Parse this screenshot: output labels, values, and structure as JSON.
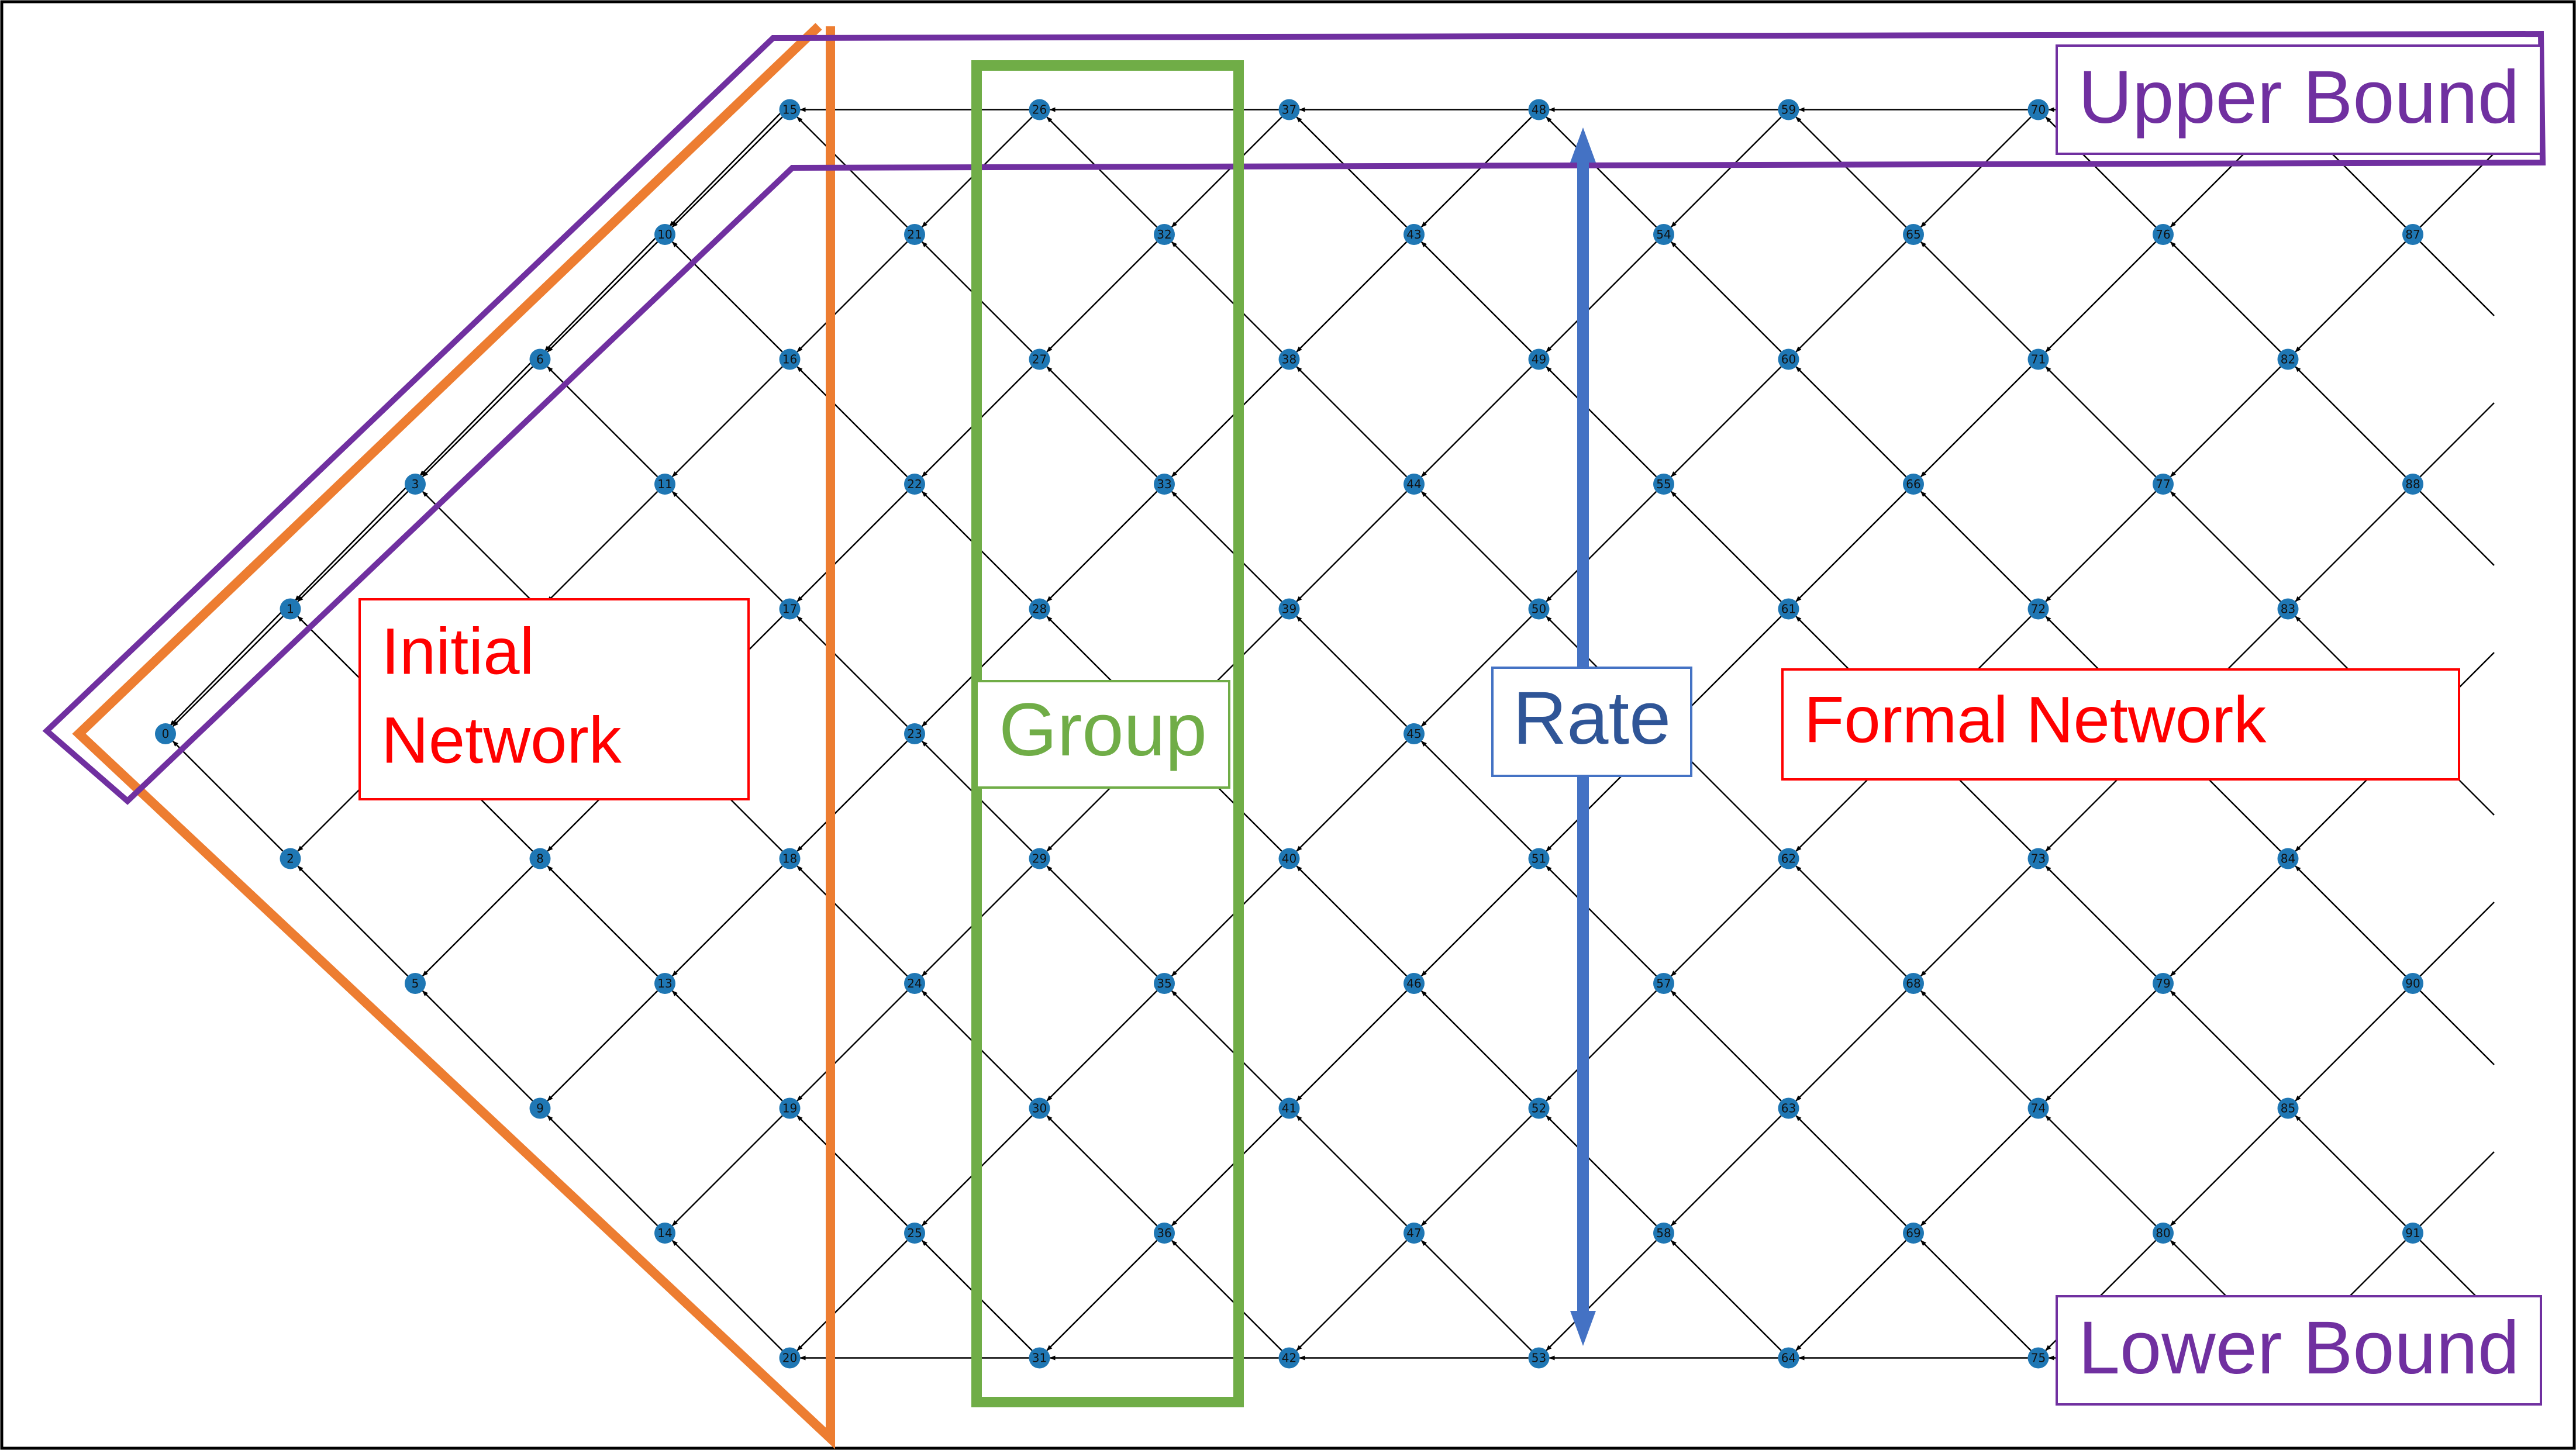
{
  "colors": {
    "node": "#1f77b4",
    "edge": "#000000",
    "initial": "#ed7d31",
    "bound": "#7030a0",
    "group": "#70ad47",
    "rate": "#4472c4",
    "network_label": "#ff0000"
  },
  "callouts": {
    "upper_bound": "Upper Bound",
    "lower_bound": "Lower Bound",
    "initial_network_line1": "Initial",
    "initial_network_line2": "Network",
    "group": "Group",
    "rate": "Rate",
    "formal_network": "Formal Network"
  },
  "network": {
    "columns": [
      {
        "index": 0,
        "nodes": [
          0
        ]
      },
      {
        "index": 1,
        "nodes": [
          1,
          2
        ]
      },
      {
        "index": 2,
        "nodes": [
          3,
          4,
          5
        ]
      },
      {
        "index": 3,
        "nodes": [
          6,
          7,
          8,
          9
        ]
      },
      {
        "index": 4,
        "nodes": [
          10,
          11,
          12,
          13,
          14
        ]
      },
      {
        "index": 5,
        "nodes": [
          15,
          16,
          17,
          18,
          19,
          20
        ]
      },
      {
        "index": 6,
        "nodes": [
          21,
          22,
          23,
          24,
          25
        ]
      },
      {
        "index": 7,
        "nodes": [
          26,
          27,
          28,
          29,
          30,
          31
        ]
      },
      {
        "index": 8,
        "nodes": [
          32,
          33,
          34,
          35,
          36
        ]
      },
      {
        "index": 9,
        "nodes": [
          37,
          38,
          39,
          40,
          41,
          42
        ]
      },
      {
        "index": 10,
        "nodes": [
          43,
          44,
          45,
          46,
          47
        ]
      },
      {
        "index": 11,
        "nodes": [
          48,
          49,
          50,
          51,
          52,
          53
        ]
      },
      {
        "index": 12,
        "nodes": [
          54,
          55,
          56,
          57,
          58
        ]
      },
      {
        "index": 13,
        "nodes": [
          59,
          60,
          61,
          62,
          63,
          64
        ]
      },
      {
        "index": 14,
        "nodes": [
          65,
          66,
          67,
          68,
          69
        ]
      },
      {
        "index": 15,
        "nodes": [
          70,
          71,
          72,
          73,
          74,
          75
        ]
      },
      {
        "index": 16,
        "nodes": [
          76,
          77,
          78,
          79,
          80
        ]
      },
      {
        "index": 17,
        "nodes": [
          81,
          82,
          83,
          84,
          85,
          86
        ]
      },
      {
        "index": 18,
        "nodes": [
          87,
          88,
          89,
          90,
          91
        ]
      }
    ],
    "visible_labels": [
      0,
      1,
      2,
      3,
      5,
      6,
      8,
      9,
      10,
      11,
      13,
      14,
      15,
      16,
      17,
      18,
      19,
      20,
      21,
      22,
      23,
      24,
      25,
      26,
      27,
      28,
      29,
      30,
      31,
      32,
      33,
      35,
      36,
      37,
      38,
      39,
      40,
      41,
      42,
      43,
      44,
      45,
      46,
      47,
      48,
      49,
      50,
      51,
      52,
      53,
      54,
      55,
      57,
      58,
      59,
      60,
      61,
      62,
      63,
      64,
      65,
      66,
      68,
      69,
      70,
      71,
      72,
      73,
      74,
      75,
      76,
      77,
      79,
      80,
      82,
      83,
      84,
      85,
      87,
      88,
      90,
      91
    ]
  }
}
